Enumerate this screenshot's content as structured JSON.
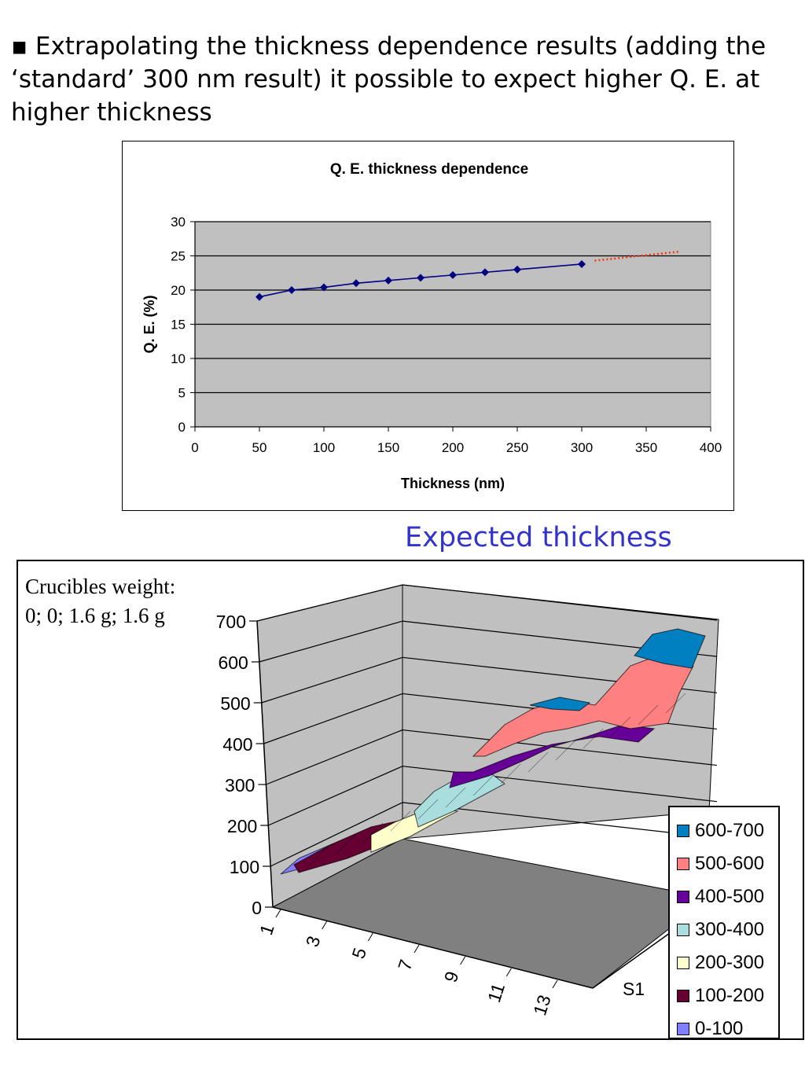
{
  "slide": {
    "bullet": "▪",
    "intro": "Extrapolating the thickness dependence results (adding the ‘standard’ 300 nm result) it possible to expect higher Q. E. at higher thickness",
    "caption": "Expected thickness",
    "crucibles_line1": "Crucibles weight:",
    "crucibles_line2": "0; 0; 1.6 g; 1.6 g"
  },
  "chart_data": [
    {
      "type": "line",
      "title": "Q. E. thickness dependence",
      "xlabel": "Thickness (nm)",
      "ylabel": "Q. E. (%)",
      "xlim": [
        0,
        400
      ],
      "ylim": [
        0,
        30
      ],
      "xticks": [
        "0",
        "50",
        "100",
        "150",
        "200",
        "250",
        "300",
        "350",
        "400"
      ],
      "yticks": [
        "0",
        "5",
        "10",
        "15",
        "20",
        "25",
        "30"
      ],
      "grid": "horizontal",
      "series": [
        {
          "x": [
            50,
            75,
            100,
            125,
            150,
            175,
            200,
            225,
            250,
            300
          ],
          "y": [
            19.0,
            20.0,
            20.4,
            21.0,
            21.4,
            21.8,
            22.2,
            22.6,
            23.0,
            23.8
          ],
          "color": "#000080"
        },
        {
          "style": "dotted-extrapolation",
          "x": [
            310,
            375
          ],
          "y": [
            24.3,
            25.6
          ],
          "color": "#ff3300"
        }
      ],
      "plot_bg": "#c0c0c0"
    },
    {
      "type": "surface",
      "zlim": [
        0,
        700
      ],
      "zticks": [
        "0",
        "100",
        "200",
        "300",
        "400",
        "500",
        "600",
        "700"
      ],
      "xticks": [
        "1",
        "3",
        "5",
        "7",
        "9",
        "11",
        "13"
      ],
      "yticks": [
        "S1"
      ],
      "legend": [
        {
          "label": "600-700",
          "color": "#0080c0"
        },
        {
          "label": "500-600",
          "color": "#ff8080"
        },
        {
          "label": "400-500",
          "color": "#660099"
        },
        {
          "label": "300-400",
          "color": "#aadddd"
        },
        {
          "label": "200-300",
          "color": "#ffffcc"
        },
        {
          "label": "100-200",
          "color": "#660033"
        },
        {
          "label": "0-100",
          "color": "#8080ff"
        }
      ],
      "legend_position": "right"
    }
  ]
}
